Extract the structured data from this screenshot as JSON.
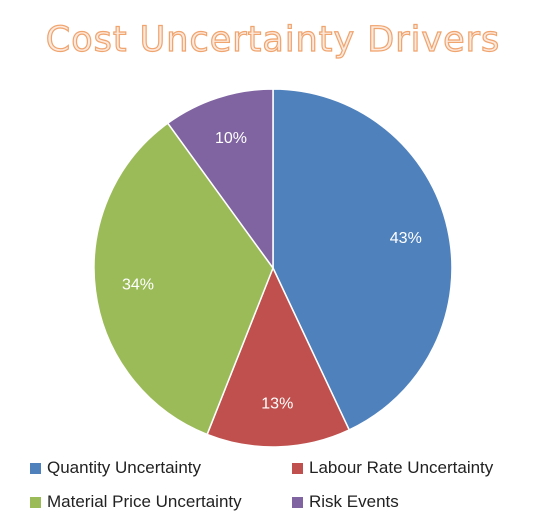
{
  "chart_data": {
    "type": "pie",
    "title": "Cost Uncertainty Drivers",
    "categories": [
      "Quantity Uncertainty",
      "Labour Rate Uncertainty",
      "Material Price Uncertainty",
      "Risk Events"
    ],
    "values": [
      43,
      13,
      34,
      10
    ],
    "value_labels": [
      "43%",
      "13%",
      "34%",
      "10%"
    ],
    "colors": [
      "#4f81bd",
      "#c0504d",
      "#9bbb59",
      "#8064a2"
    ],
    "legend_placement": "bottom",
    "legend": [
      {
        "label": "Quantity Uncertainty",
        "color": "#4f81bd"
      },
      {
        "label": "Labour Rate Uncertainty",
        "color": "#c0504d"
      },
      {
        "label": "Material Price Uncertainty",
        "color": "#9bbb59"
      },
      {
        "label": "Risk Events",
        "color": "#8064a2"
      }
    ]
  }
}
